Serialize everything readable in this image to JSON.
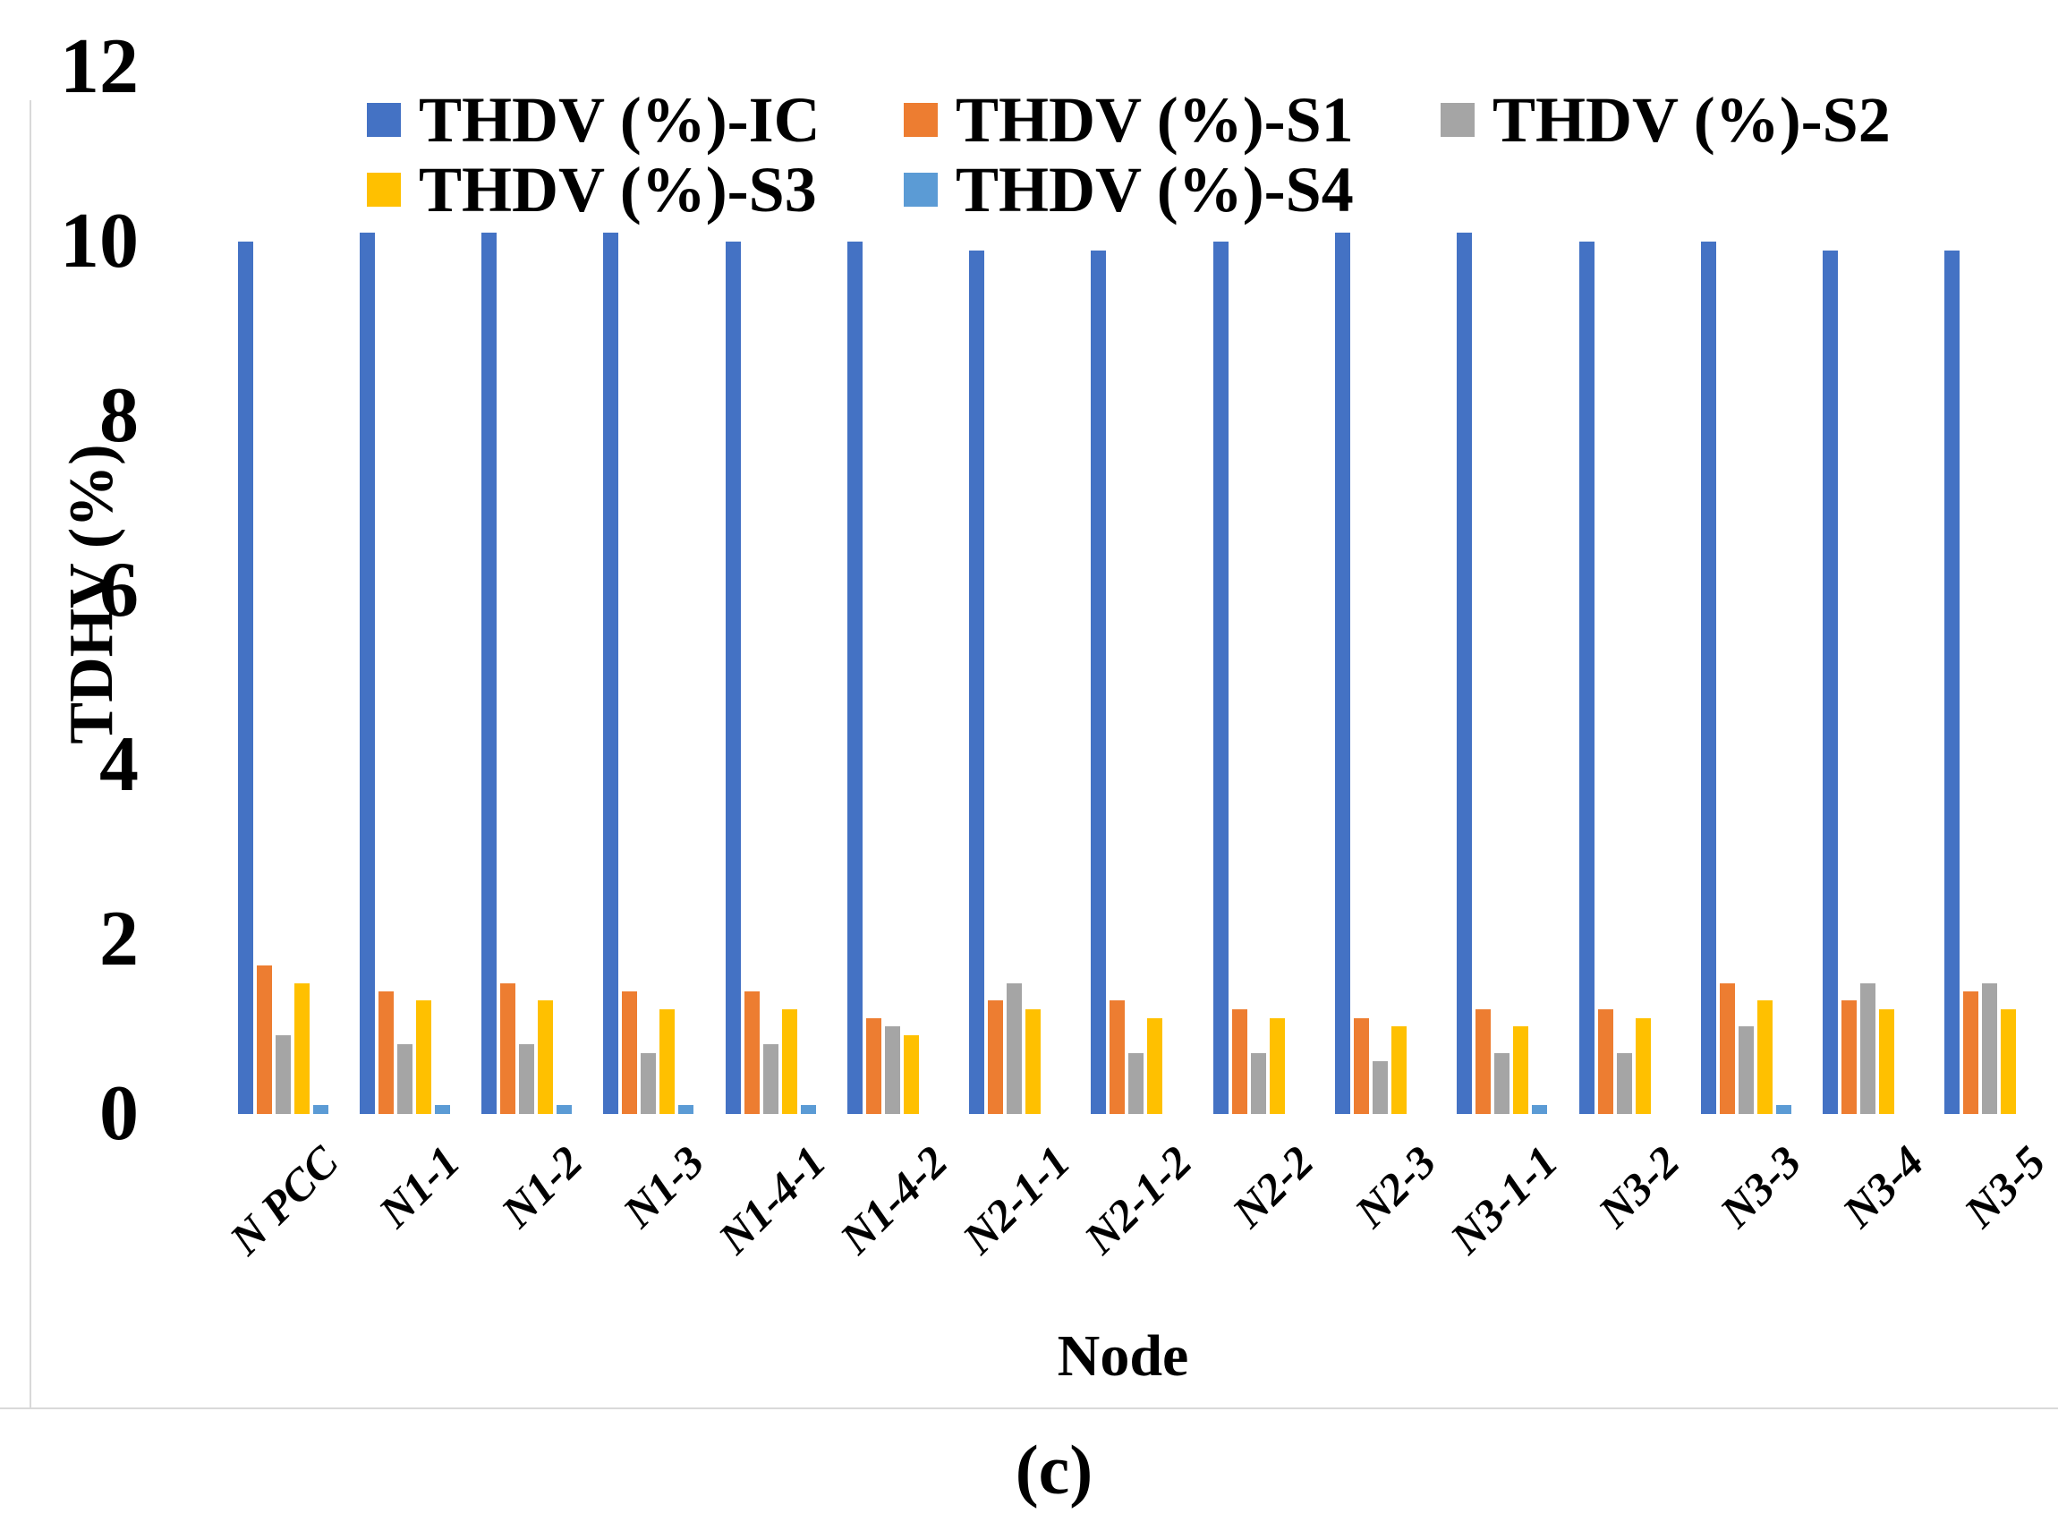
{
  "figure": {
    "caption": "(c)"
  },
  "chart_data": {
    "type": "bar",
    "title": "",
    "xlabel": "Node",
    "ylabel": "TDHV (%)",
    "ylim": [
      0,
      12
    ],
    "yticks": [
      0,
      2,
      4,
      6,
      8,
      10,
      12
    ],
    "grid": false,
    "legend_position": "top-inside-two-rows",
    "categories": [
      "N PCC",
      "N1-1",
      "N1-2",
      "N1-3",
      "N1-4-1",
      "N1-4-2",
      "N2-1-1",
      "N2-1-2",
      "N2-2",
      "N2-3",
      "N3-1-1",
      "N3-2",
      "N3-3",
      "N3-4",
      "N3-5"
    ],
    "series": [
      {
        "name": "THDV (%)-IC",
        "color": "#4472C4",
        "values": [
          10.0,
          10.1,
          10.1,
          10.1,
          10.0,
          10.0,
          9.9,
          9.9,
          10.0,
          10.1,
          10.1,
          10.0,
          10.0,
          9.9,
          9.9
        ]
      },
      {
        "name": "THDV (%)-S1",
        "color": "#ED7D31",
        "values": [
          1.7,
          1.4,
          1.5,
          1.4,
          1.4,
          1.1,
          1.3,
          1.3,
          1.2,
          1.1,
          1.2,
          1.2,
          1.5,
          1.3,
          1.4
        ]
      },
      {
        "name": "THDV (%)-S2",
        "color": "#A5A5A5",
        "values": [
          0.9,
          0.8,
          0.8,
          0.7,
          0.8,
          1.0,
          1.5,
          0.7,
          0.7,
          0.6,
          0.7,
          0.7,
          1.0,
          1.5,
          1.5
        ]
      },
      {
        "name": "THDV (%)-S3",
        "color": "#FFC000",
        "values": [
          1.5,
          1.3,
          1.3,
          1.2,
          1.2,
          0.9,
          1.2,
          1.1,
          1.1,
          1.0,
          1.0,
          1.1,
          1.3,
          1.2,
          1.2
        ]
      },
      {
        "name": "THDV (%)-S4",
        "color": "#5B9BD5",
        "values": [
          0.1,
          0.1,
          0.1,
          0.1,
          0.1,
          0,
          0,
          0,
          0,
          0,
          0.1,
          0,
          0.1,
          0,
          0
        ]
      }
    ]
  },
  "layout_colors": {
    "background": "#FFFFFF",
    "rule_lines": "#D9D9D9",
    "text": "#000000"
  }
}
